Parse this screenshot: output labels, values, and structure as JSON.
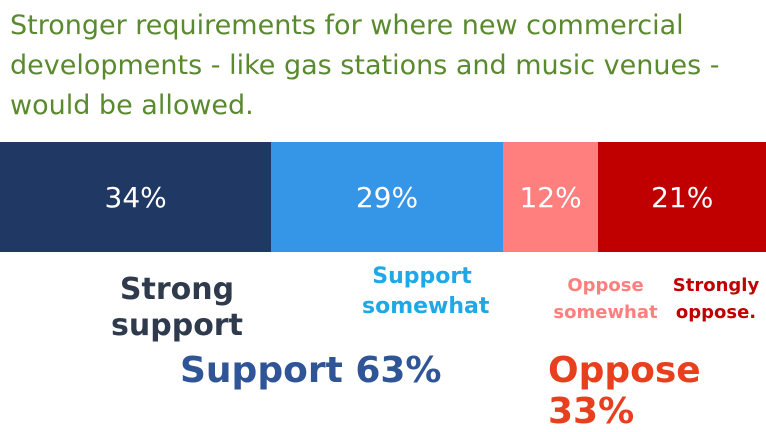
{
  "chart_data": {
    "type": "bar",
    "orientation": "horizontal-stacked",
    "title": "Stronger requirements for where new commercial developments  - like gas stations and music venues - would be allowed.",
    "categories": [
      "Strong support",
      "Support somewhat",
      "Oppose somewhat",
      "Strongly oppose."
    ],
    "values": [
      34,
      29,
      12,
      21
    ],
    "value_labels": [
      "34%",
      "29%",
      "12%",
      "21%"
    ],
    "colors": [
      "#203864",
      "#3595e6",
      "#ff7f7f",
      "#c00000"
    ],
    "label_colors": [
      "#2f3b4c",
      "#1fa8e6",
      "#ff7f7f",
      "#c00000"
    ],
    "totals": [
      {
        "label": "Support 63%",
        "color": "#2f5597"
      },
      {
        "label": "Oppose 33%",
        "color": "#e8401e"
      }
    ]
  }
}
